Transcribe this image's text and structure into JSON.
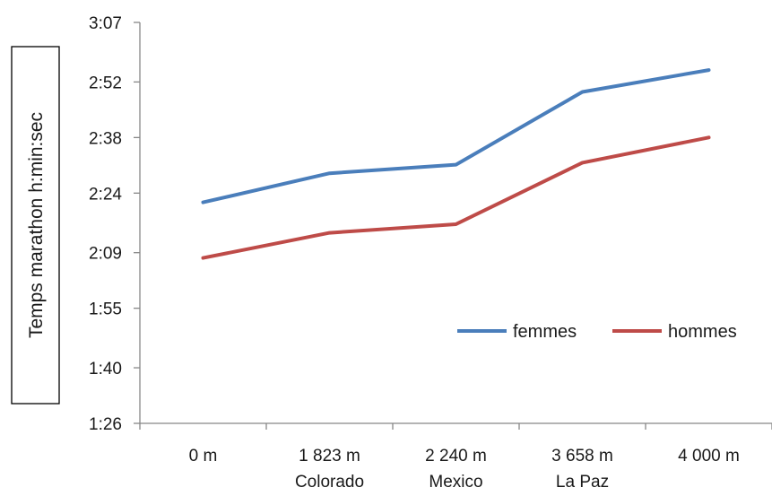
{
  "chart_data": {
    "type": "line",
    "title": "",
    "xlabel": "",
    "ylabel": "Temps  marathon h:min:sec",
    "categories": [
      [
        "0 m",
        ""
      ],
      [
        "1 823 m",
        "Colorado"
      ],
      [
        "2 240 m",
        "Mexico"
      ],
      [
        "3 658 m",
        "La Paz"
      ],
      [
        "4 000 m",
        ""
      ]
    ],
    "y_ticks": [
      "1:26",
      "1:40",
      "1:55",
      "2:09",
      "2:24",
      "2:38",
      "2:52",
      "3:07"
    ],
    "y_tick_seconds": [
      5160,
      6000,
      6900,
      7740,
      8640,
      9480,
      10320,
      11220
    ],
    "ylim_seconds": [
      5160,
      11220
    ],
    "grid": false,
    "legend_position": "right",
    "series": [
      {
        "name": "femmes",
        "color": "#4a7ebb",
        "values": [
          "2:21:40",
          "2:29:00",
          "2:31:10",
          "2:49:30",
          "2:55:00"
        ]
      },
      {
        "name": "hommes",
        "color": "#be4b48",
        "values": [
          "2:07:40",
          "2:14:00",
          "2:16:10",
          "2:31:40",
          "2:38:00"
        ]
      }
    ]
  }
}
